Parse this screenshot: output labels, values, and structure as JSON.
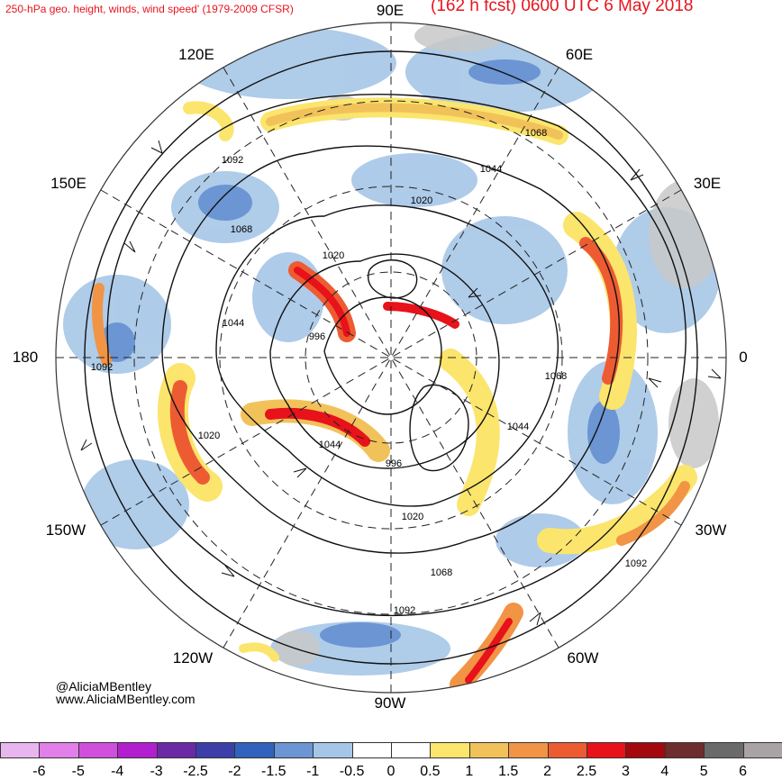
{
  "header": {
    "title_left": "250-hPa geo. height, winds, wind speed' (1979-2009 CFSR)",
    "title_right": "(162 h fcst) 0600 UTC 6 May 2018"
  },
  "longitude_labels": [
    "90E",
    "60E",
    "30E",
    "0",
    "30W",
    "60W",
    "90W",
    "120W",
    "150W",
    "180",
    "150E",
    "120E"
  ],
  "contour_labels": [
    "1092",
    "1068",
    "1044",
    "1020",
    "996",
    "1020",
    "1044",
    "1068",
    "1092",
    "1092",
    "1068",
    "1044",
    "1020",
    "996",
    "1020",
    "1044",
    "1068",
    "1092"
  ],
  "credits": {
    "handle": "@AliciaMBentley",
    "website": "www.AliciaMBentley.com"
  },
  "colorbar": {
    "ticks": [
      "-6",
      "-5",
      "-4",
      "-3",
      "-2.5",
      "-2",
      "-1.5",
      "-1",
      "-0.5",
      "0",
      "0.5",
      "1",
      "1.5",
      "2",
      "2.5",
      "3",
      "4",
      "5",
      "6"
    ],
    "colors": [
      "#e8b6ee",
      "#e27fe8",
      "#d14fdd",
      "#b21fcf",
      "#6a2aa6",
      "#3c3fa8",
      "#2f63bd",
      "#6b95d3",
      "#a6c6e7",
      "#ffffff",
      "#ffffff",
      "#fbe56c",
      "#f2c25a",
      "#f19445",
      "#ed5b32",
      "#e8121a",
      "#a3080d",
      "#6e2c2c",
      "#6b6a6b",
      "#aaa3a5"
    ]
  },
  "colors": {
    "title": "#e8141e",
    "land": "#c8c8c8",
    "ocean": "#ffffff"
  }
}
